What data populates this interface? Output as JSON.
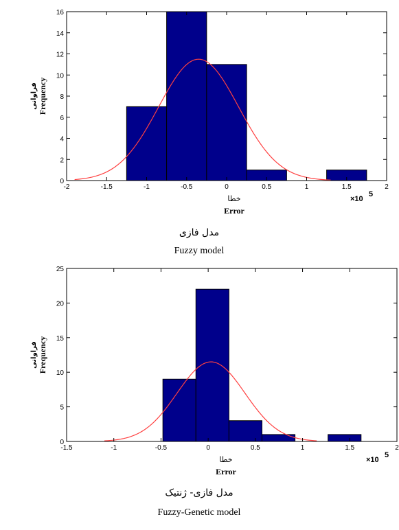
{
  "colors": {
    "bar_fill": "#00008b",
    "bar_stroke": "#000000",
    "curve": "#ff4040"
  },
  "chart_data": [
    {
      "type": "bar",
      "ylabel": "Frequency",
      "ylabel_fa": "فراوانی",
      "xlabel": "Error",
      "xlabel_fa": "خطا",
      "x_multiplier": "×10",
      "x_multiplier_exp": "5",
      "caption_fa": "مدل فازی",
      "caption_en": "Fuzzy model",
      "xlim": [
        -2,
        2
      ],
      "ylim": [
        0,
        16
      ],
      "xticks": [
        -2,
        -1.5,
        -1,
        -0.5,
        0,
        0.5,
        1,
        1.5,
        2
      ],
      "xtick_labels": [
        "-2",
        "-1.5",
        "-1",
        "-0.5",
        "0",
        "0.5",
        "1",
        "1.5",
        "2"
      ],
      "yticks": [
        0,
        2,
        4,
        6,
        8,
        10,
        12,
        14,
        16
      ],
      "ytick_labels": [
        "0",
        "2",
        "4",
        "6",
        "8",
        "10",
        "12",
        "14",
        "16"
      ],
      "bins": [
        {
          "x0": -1.25,
          "x1": -0.75,
          "count": 7
        },
        {
          "x0": -0.75,
          "x1": -0.25,
          "count": 16
        },
        {
          "x0": -0.25,
          "x1": 0.25,
          "count": 11
        },
        {
          "x0": 0.25,
          "x1": 0.75,
          "count": 1
        },
        {
          "x0": 0.75,
          "x1": 1.25,
          "count": 0
        },
        {
          "x0": 1.25,
          "x1": 1.75,
          "count": 1
        }
      ],
      "fit_curve": {
        "type": "normal",
        "mean": -0.35,
        "std": 0.5,
        "peak": 11.5,
        "x_range": [
          -1.9,
          1.3
        ]
      }
    },
    {
      "type": "bar",
      "ylabel": "Frequency",
      "ylabel_fa": "فراوانی",
      "xlabel": "Error",
      "xlabel_fa": "خطا",
      "x_multiplier": "×10",
      "x_multiplier_exp": "5",
      "caption_fa": "مدل فازی- ژنتیک",
      "caption_en": "Fuzzy-Genetic model",
      "xlim": [
        -1.5,
        2
      ],
      "ylim": [
        0,
        25
      ],
      "xticks": [
        -1.5,
        -1,
        -0.5,
        0,
        0.5,
        1,
        1.5,
        2
      ],
      "xtick_labels": [
        "-1.5",
        "-1",
        "-0.5",
        "0",
        "0.5",
        "1",
        "1.5",
        "2"
      ],
      "yticks": [
        0,
        5,
        10,
        15,
        20,
        25
      ],
      "ytick_labels": [
        "0",
        "5",
        "10",
        "15",
        "20",
        "25"
      ],
      "bins": [
        {
          "x0": -0.48,
          "x1": -0.13,
          "count": 9
        },
        {
          "x0": -0.13,
          "x1": 0.22,
          "count": 22
        },
        {
          "x0": 0.22,
          "x1": 0.57,
          "count": 3
        },
        {
          "x0": 0.57,
          "x1": 0.92,
          "count": 1
        },
        {
          "x0": 0.92,
          "x1": 1.27,
          "count": 0
        },
        {
          "x0": 1.27,
          "x1": 1.62,
          "count": 1
        }
      ],
      "fit_curve": {
        "type": "normal",
        "mean": 0.03,
        "std": 0.36,
        "peak": 11.5,
        "x_range": [
          -1.1,
          1.15
        ]
      }
    }
  ]
}
